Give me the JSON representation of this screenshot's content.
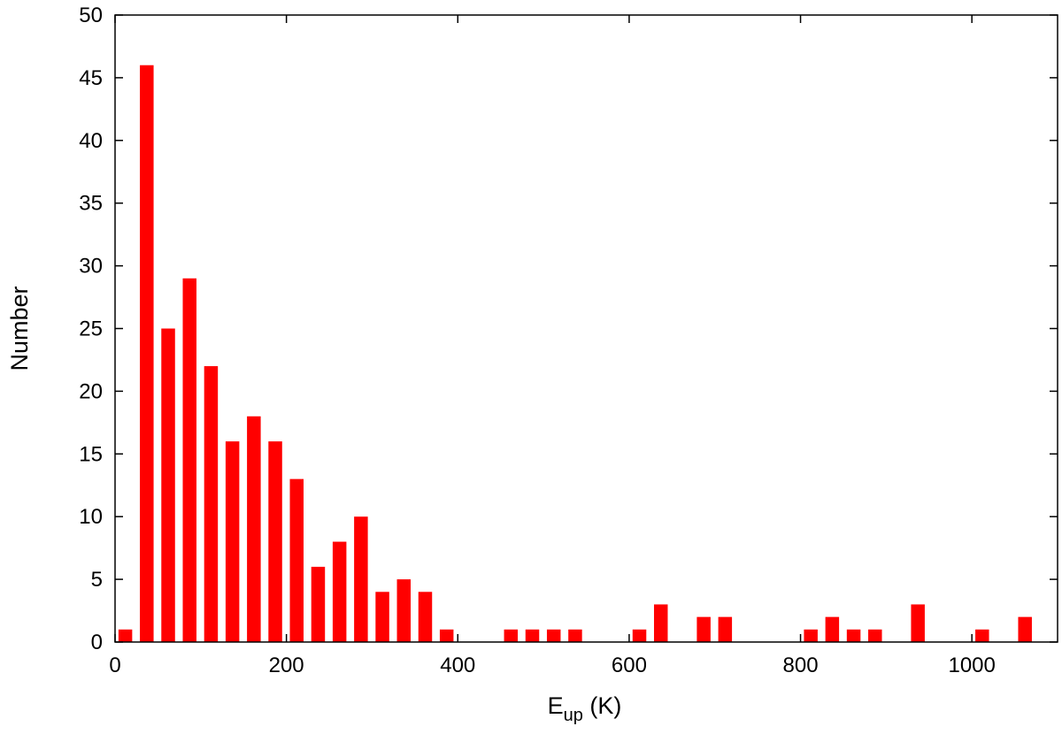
{
  "chart_data": {
    "type": "bar",
    "xlabel": "E",
    "xlabel_subscript": "up",
    "xlabel_suffix": " (K)",
    "ylabel": "Number",
    "xlim": [
      0,
      1100
    ],
    "ylim": [
      0,
      50
    ],
    "xticks": [
      0,
      200,
      400,
      600,
      800,
      1000
    ],
    "yticks": [
      0,
      5,
      10,
      15,
      20,
      25,
      30,
      35,
      40,
      45,
      50
    ],
    "bar_width": 16,
    "bar_color": "#ff0000",
    "grid": false,
    "bins": [
      {
        "x": 12,
        "value": 1
      },
      {
        "x": 37,
        "value": 46
      },
      {
        "x": 62,
        "value": 25
      },
      {
        "x": 87,
        "value": 29
      },
      {
        "x": 112,
        "value": 22
      },
      {
        "x": 137,
        "value": 16
      },
      {
        "x": 162,
        "value": 18
      },
      {
        "x": 187,
        "value": 16
      },
      {
        "x": 212,
        "value": 13
      },
      {
        "x": 237,
        "value": 6
      },
      {
        "x": 262,
        "value": 8
      },
      {
        "x": 287,
        "value": 10
      },
      {
        "x": 312,
        "value": 4
      },
      {
        "x": 337,
        "value": 5
      },
      {
        "x": 362,
        "value": 4
      },
      {
        "x": 387,
        "value": 1
      },
      {
        "x": 462,
        "value": 1
      },
      {
        "x": 487,
        "value": 1
      },
      {
        "x": 512,
        "value": 1
      },
      {
        "x": 537,
        "value": 1
      },
      {
        "x": 612,
        "value": 1
      },
      {
        "x": 637,
        "value": 3
      },
      {
        "x": 687,
        "value": 2
      },
      {
        "x": 712,
        "value": 2
      },
      {
        "x": 812,
        "value": 1
      },
      {
        "x": 837,
        "value": 2
      },
      {
        "x": 862,
        "value": 1
      },
      {
        "x": 887,
        "value": 1
      },
      {
        "x": 937,
        "value": 3
      },
      {
        "x": 1012,
        "value": 1
      },
      {
        "x": 1062,
        "value": 2
      }
    ]
  }
}
